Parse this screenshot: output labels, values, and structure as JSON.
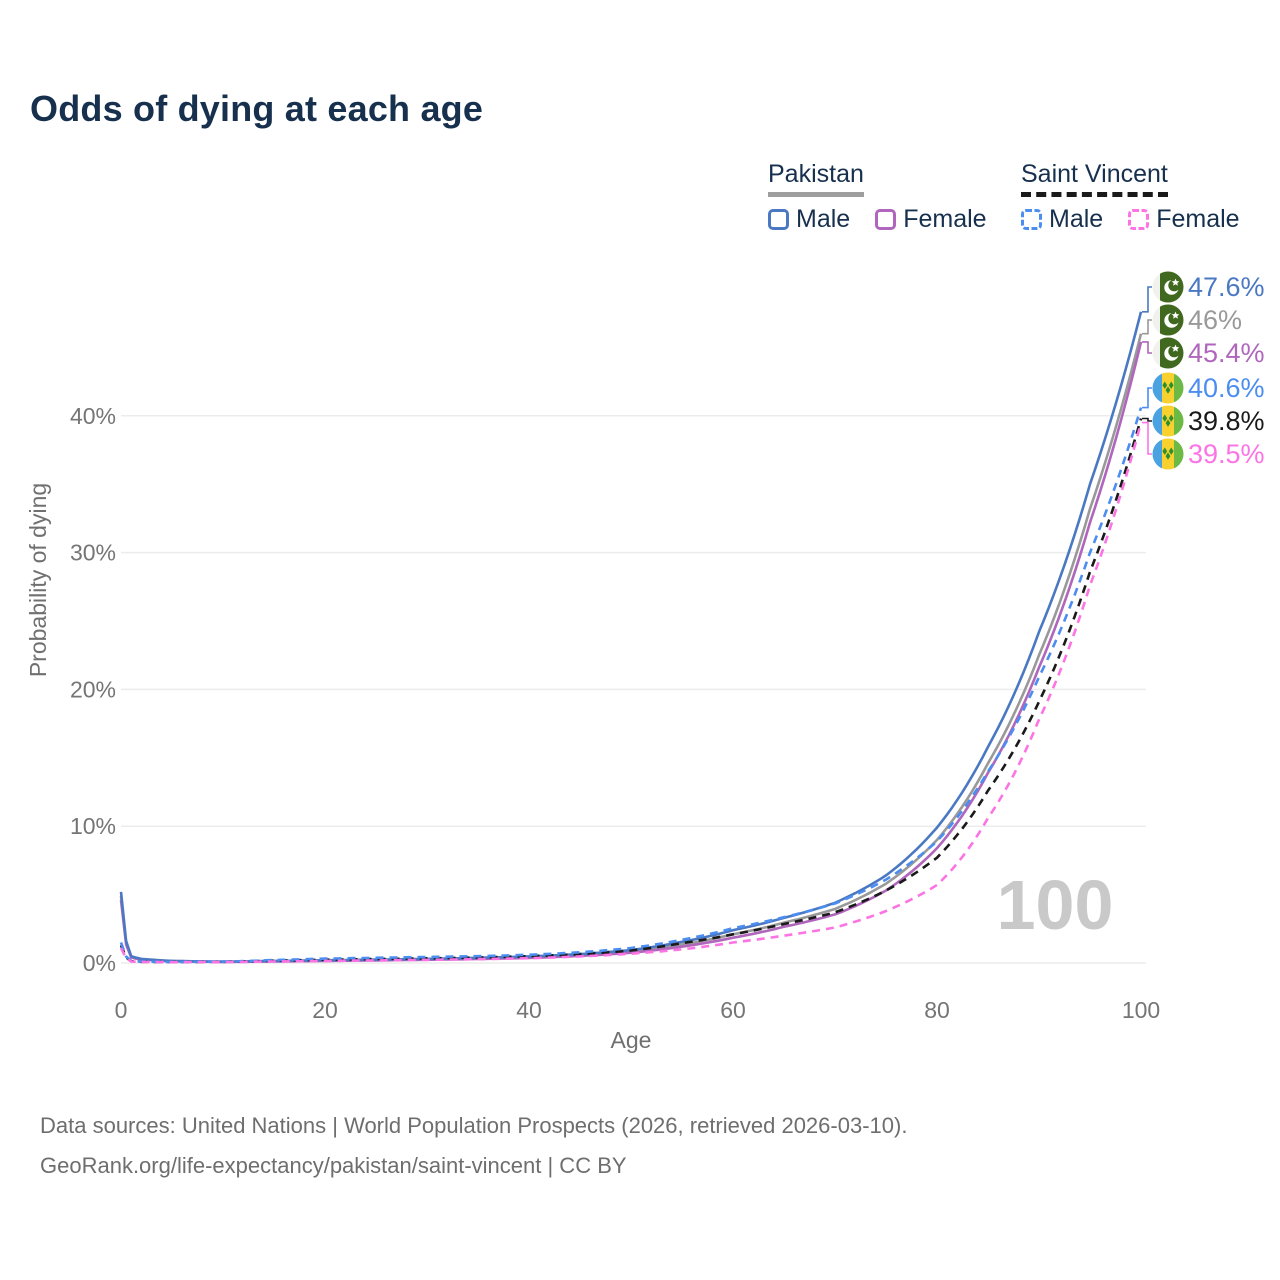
{
  "title": "Odds of dying at each age",
  "watermark": "100",
  "legend": {
    "pakistan": {
      "heading": "Pakistan",
      "male_label": "Male",
      "female_label": "Female"
    },
    "saint_vincent": {
      "heading": "Saint Vincent",
      "male_label": "Male",
      "female_label": "Female"
    }
  },
  "colors": {
    "title_text": "#17304E",
    "pakistan_male": "#4A78C2",
    "pakistan_both": "#999999",
    "pakistan_female": "#AF66BC",
    "sv_male": "#4B8DF0",
    "sv_both": "#1A1A1A",
    "sv_female": "#FC74E4",
    "pakistan_underline": "#9E9E9E",
    "sv_underline": "#1A1A1A",
    "grid": "#ECECEC",
    "axis_text": "#757575",
    "watermark": "#C9C9C9",
    "footer_text": "#6E6E6E"
  },
  "axes": {
    "x_label": "Age",
    "y_label": "Probability of dying",
    "x_ticks": [
      "0",
      "20",
      "40",
      "60",
      "80",
      "100"
    ],
    "y_ticks": [
      "0%",
      "10%",
      "20%",
      "30%",
      "40%"
    ]
  },
  "chart_data": {
    "type": "line",
    "title": "Odds of dying at each age",
    "xlabel": "Age",
    "ylabel": "Probability of dying",
    "xlim": [
      0,
      100
    ],
    "ylim_percent": [
      0,
      48
    ],
    "grid": true,
    "legend_position": "top-right",
    "x_ages": [
      0,
      1,
      2,
      5,
      10,
      15,
      20,
      25,
      30,
      35,
      40,
      45,
      50,
      55,
      60,
      65,
      70,
      75,
      80,
      85,
      90,
      95,
      100
    ],
    "series": [
      {
        "name": "Pakistan Both sexes",
        "country": "Pakistan",
        "sex": "both",
        "flag": "pakistan",
        "style": "solid",
        "color": "#999999",
        "label_slot": 1,
        "end_label": "46%",
        "values_percent": [
          4.9,
          0.45,
          0.28,
          0.14,
          0.09,
          0.13,
          0.17,
          0.22,
          0.27,
          0.33,
          0.42,
          0.58,
          0.85,
          1.35,
          2.1,
          2.95,
          3.95,
          5.8,
          9.0,
          14.6,
          22.5,
          33.2,
          46.0
        ]
      },
      {
        "name": "Pakistan Female",
        "country": "Pakistan",
        "sex": "female",
        "flag": "pakistan",
        "style": "solid",
        "color": "#AF66BC",
        "label_slot": 2,
        "end_label": "45.4%",
        "values_percent": [
          4.6,
          0.4,
          0.25,
          0.13,
          0.08,
          0.11,
          0.15,
          0.19,
          0.24,
          0.29,
          0.37,
          0.52,
          0.75,
          1.2,
          1.85,
          2.65,
          3.55,
          5.3,
          8.4,
          13.9,
          21.6,
          32.2,
          45.4
        ]
      },
      {
        "name": "Pakistan Male",
        "country": "Pakistan",
        "sex": "male",
        "flag": "pakistan",
        "style": "solid",
        "color": "#4A78C2",
        "label_slot": 0,
        "end_label": "47.6%",
        "values_percent": [
          5.2,
          0.5,
          0.3,
          0.15,
          0.1,
          0.15,
          0.2,
          0.25,
          0.3,
          0.38,
          0.48,
          0.65,
          0.95,
          1.55,
          2.4,
          3.3,
          4.4,
          6.4,
          9.9,
          15.8,
          24.2,
          35.0,
          47.6
        ]
      },
      {
        "name": "Saint Vincent Both sexes",
        "country": "Saint Vincent",
        "sex": "both",
        "flag": "saint-vincent",
        "style": "dashed",
        "color": "#1A1A1A",
        "label_slot": 4,
        "end_label": "39.8%",
        "values_percent": [
          1.3,
          0.13,
          0.09,
          0.07,
          0.09,
          0.17,
          0.24,
          0.29,
          0.34,
          0.4,
          0.5,
          0.65,
          0.92,
          1.45,
          2.1,
          2.85,
          3.7,
          5.3,
          7.7,
          12.6,
          19.1,
          28.6,
          39.8
        ]
      },
      {
        "name": "Saint Vincent Male",
        "country": "Saint Vincent",
        "sex": "male",
        "flag": "saint-vincent",
        "style": "dashed",
        "color": "#4B8DF0",
        "label_slot": 3,
        "end_label": "40.6%",
        "values_percent": [
          1.5,
          0.15,
          0.1,
          0.08,
          0.1,
          0.22,
          0.32,
          0.38,
          0.44,
          0.5,
          0.6,
          0.78,
          1.1,
          1.7,
          2.55,
          3.35,
          4.35,
          6.1,
          8.9,
          14.0,
          20.9,
          30.0,
          40.6
        ]
      },
      {
        "name": "Saint Vincent Female",
        "country": "Saint Vincent",
        "sex": "female",
        "flag": "saint-vincent",
        "style": "dashed",
        "color": "#FC74E4",
        "label_slot": 5,
        "end_label": "39.5%",
        "values_percent": [
          1.1,
          0.11,
          0.08,
          0.06,
          0.07,
          0.11,
          0.15,
          0.19,
          0.23,
          0.28,
          0.35,
          0.48,
          0.68,
          1.0,
          1.5,
          2.0,
          2.6,
          3.8,
          5.7,
          10.6,
          17.8,
          27.6,
          39.5
        ]
      }
    ]
  },
  "footer": {
    "line1": "Data sources: United Nations | World Population Prospects (2026, retrieved 2026-03-10).",
    "line2": "GeoRank.org/life-expectancy/pakistan/saint-vincent | CC BY"
  }
}
